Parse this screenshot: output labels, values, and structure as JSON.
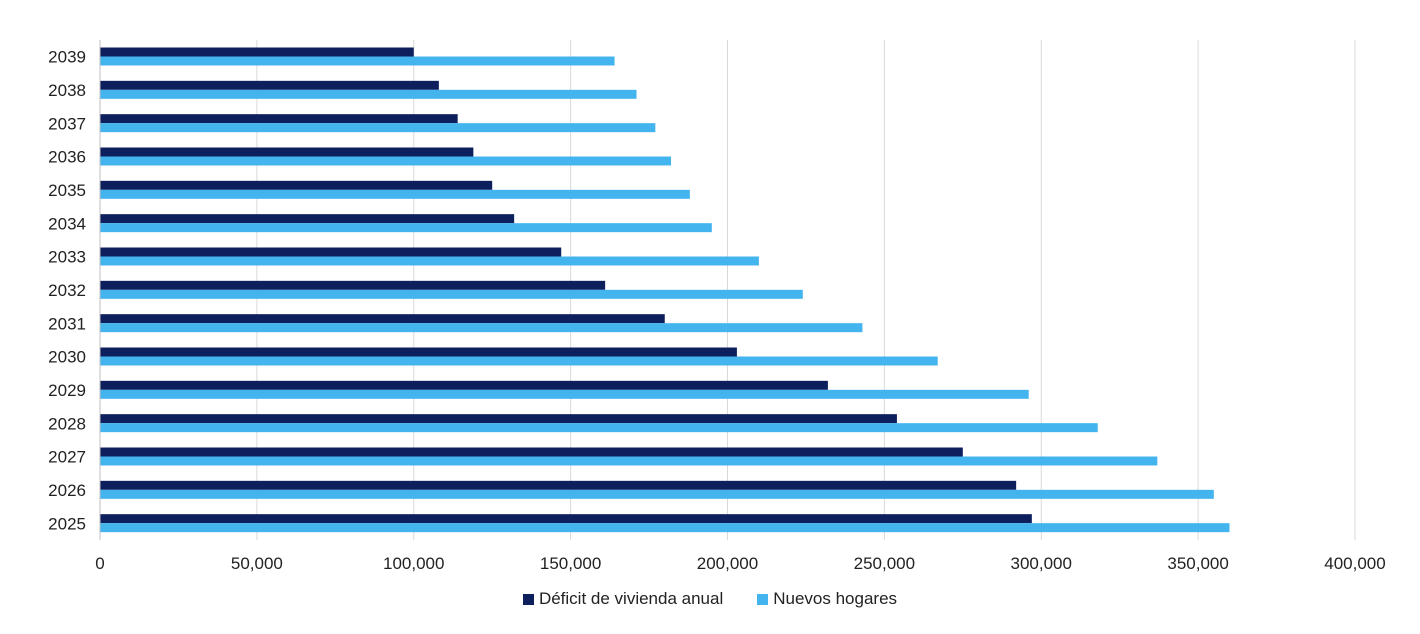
{
  "chart_data": {
    "type": "bar",
    "orientation": "horizontal",
    "categories": [
      "2025",
      "2026",
      "2027",
      "2028",
      "2029",
      "2030",
      "2031",
      "2032",
      "2033",
      "2034",
      "2035",
      "2036",
      "2037",
      "2038",
      "2039"
    ],
    "series": [
      {
        "name": "Déficit de vivienda anual",
        "color": "#0d1f5c",
        "values": [
          297000,
          292000,
          275000,
          254000,
          232000,
          203000,
          180000,
          161000,
          147000,
          132000,
          125000,
          119000,
          114000,
          108000,
          100000
        ]
      },
      {
        "name": "Nuevos hogares",
        "color": "#44b4ef",
        "values": [
          360000,
          355000,
          337000,
          318000,
          296000,
          267000,
          243000,
          224000,
          210000,
          195000,
          188000,
          182000,
          177000,
          171000,
          164000
        ]
      }
    ],
    "xlim": [
      0,
      400000
    ],
    "xticks": [
      0,
      50000,
      100000,
      150000,
      200000,
      250000,
      300000,
      350000,
      400000
    ],
    "xtick_labels": [
      "0",
      "50,000",
      "100,000",
      "150,000",
      "200,000",
      "250,000",
      "300,000",
      "350,000",
      "400,000"
    ],
    "grid": "vertical",
    "legend_position": "bottom",
    "title": "",
    "xlabel": "",
    "ylabel": ""
  }
}
